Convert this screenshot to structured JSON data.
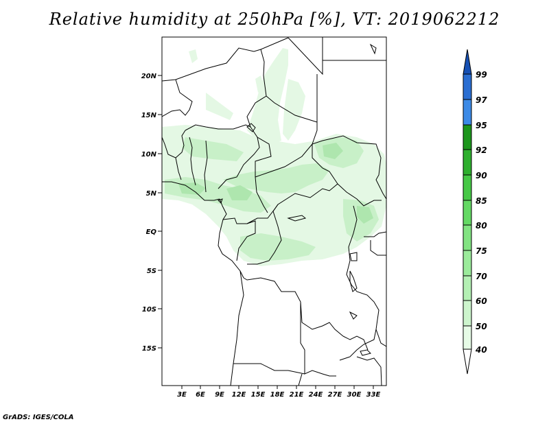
{
  "map": {
    "title": "Relative humidity at 250hPa [%], VT: 2019062212",
    "footer": "GrADS: IGES/COLA",
    "lat_labels": [
      "20N",
      "15N",
      "10N",
      "5N",
      "EQ",
      "5S",
      "10S",
      "15S"
    ],
    "lon_labels": [
      "3E",
      "6E",
      "9E",
      "12E",
      "15E",
      "18E",
      "21E",
      "24E",
      "27E",
      "30E",
      "33E"
    ],
    "colorbar": {
      "labels": [
        "40",
        "50",
        "60",
        "70",
        "75",
        "80",
        "85",
        "90",
        "92",
        "95",
        "97",
        "99"
      ],
      "colors": [
        "#e6fbe6",
        "#cdf5cd",
        "#b4f0b4",
        "#9beb9b",
        "#82e382",
        "#64d964",
        "#46c846",
        "#2eaf2e",
        "#1c961c",
        "#3c8ae6",
        "#2a6ed2",
        "#1650b4"
      ]
    },
    "shading_colors": {
      "light": "#e4f8e4",
      "medium": "#c8f0c8",
      "darker": "#aee6ae"
    }
  }
}
